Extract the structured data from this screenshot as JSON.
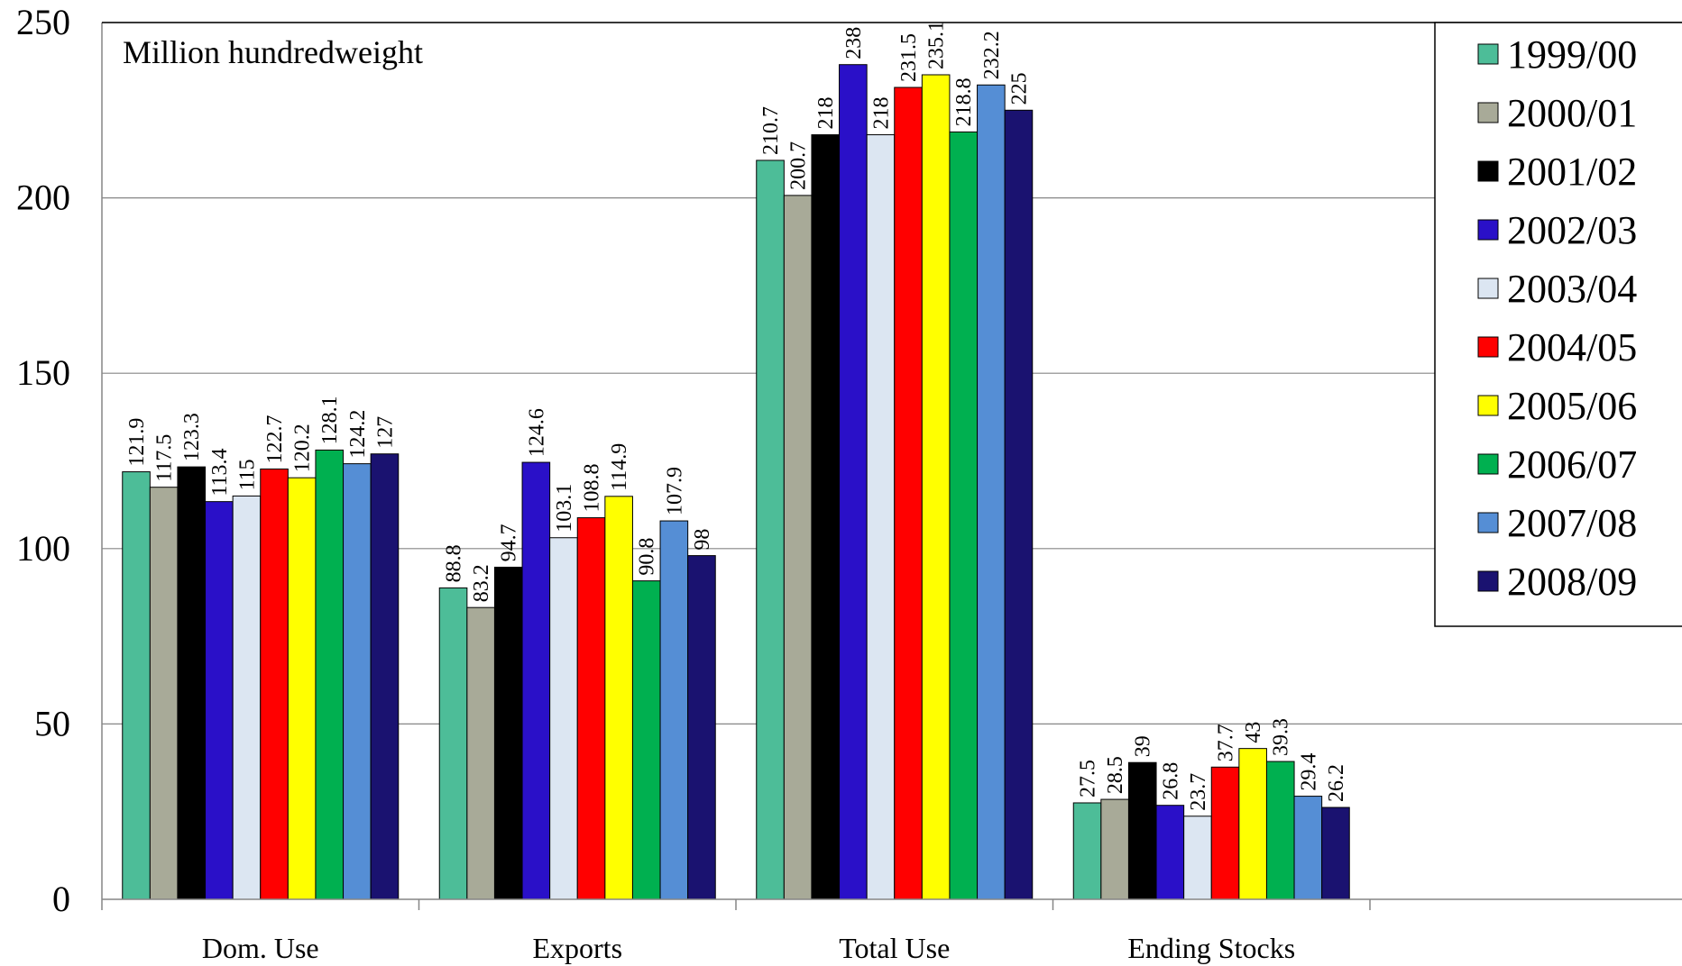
{
  "chart_data": {
    "type": "bar",
    "title": "",
    "unit_label": "Million hundredweight",
    "xlabel": "",
    "ylabel": "",
    "ylim": [
      0,
      250
    ],
    "yticks": [
      "0",
      "50",
      "100",
      "150",
      "200",
      "250"
    ],
    "grid": true,
    "legend_position": "top-right",
    "categories": [
      "Dom. Use",
      "Exports",
      "Total Use",
      "Ending Stocks"
    ],
    "series": [
      {
        "name": "1999/00",
        "color": "#4dbd98",
        "values": [
          121.9,
          88.8,
          210.7,
          27.5
        ],
        "labels": [
          "121.9",
          "88.8",
          "210.7",
          "27.5"
        ]
      },
      {
        "name": "2000/01",
        "color": "#a8aa98",
        "values": [
          117.5,
          83.2,
          200.7,
          28.5
        ],
        "labels": [
          "117.5",
          "83.2",
          "200.7",
          "28.5"
        ]
      },
      {
        "name": "2001/02",
        "color": "#000000",
        "values": [
          123.3,
          94.7,
          218,
          39
        ],
        "labels": [
          "123.3",
          "94.7",
          "218",
          "39"
        ]
      },
      {
        "name": "2002/03",
        "color": "#2a10c8",
        "values": [
          113.4,
          124.6,
          238,
          26.8
        ],
        "labels": [
          "113.4",
          "124.6",
          "238",
          "26.8"
        ]
      },
      {
        "name": "2003/04",
        "color": "#dce6f2",
        "values": [
          115,
          103.1,
          218,
          23.7
        ],
        "labels": [
          "115",
          "103.1",
          "218",
          "23.7"
        ]
      },
      {
        "name": "2004/05",
        "color": "#ff0000",
        "values": [
          122.7,
          108.8,
          231.5,
          37.7
        ],
        "labels": [
          "122.7",
          "108.8",
          "231.5",
          "37.7"
        ]
      },
      {
        "name": "2005/06",
        "color": "#ffff00",
        "values": [
          120.2,
          114.9,
          235.1,
          43
        ],
        "labels": [
          "120.2",
          "114.9",
          "235.1",
          "43"
        ]
      },
      {
        "name": "2006/07",
        "color": "#00b050",
        "values": [
          128.1,
          90.8,
          218.8,
          39.3
        ],
        "labels": [
          "128.1",
          "90.8",
          "218.8",
          "39.3"
        ]
      },
      {
        "name": "2007/08",
        "color": "#558ed5",
        "values": [
          124.2,
          107.9,
          232.2,
          29.4
        ],
        "labels": [
          "124.2",
          "107.9",
          "232.2",
          "29.4"
        ]
      },
      {
        "name": "2008/09",
        "color": "#1a1270",
        "values": [
          127,
          98,
          225,
          26.2
        ],
        "labels": [
          "127",
          "98",
          "225",
          "26.2"
        ]
      }
    ]
  }
}
